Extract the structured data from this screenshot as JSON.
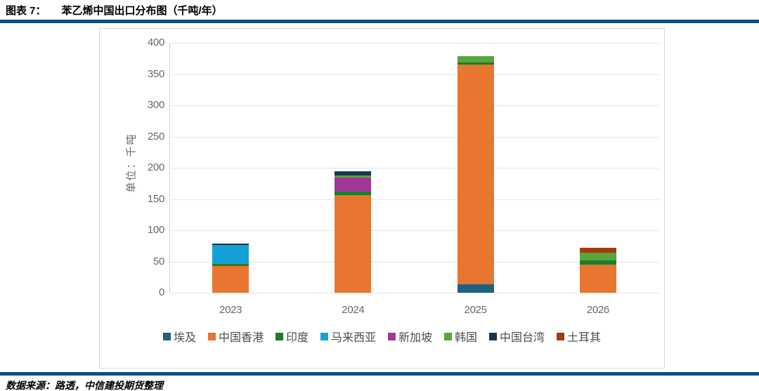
{
  "figure": {
    "label": "图表 7：",
    "title": "苯乙烯中国出口分布图（千吨/年）"
  },
  "source_note": "数据来源：路透，中信建投期货整理",
  "accent_colors": {
    "rule_blue": "#0e4e7e",
    "grid_gray": "#e5e5e5",
    "axis_gray": "#d2d2d2",
    "tick_text_gray": "#696969",
    "legend_text_gray": "#4d4d4d"
  },
  "chart_data": {
    "type": "bar",
    "stacked": true,
    "title": "苯乙烯中国出口分布图（千吨/年）",
    "categories": [
      "2023",
      "2024",
      "2025",
      "2026"
    ],
    "series": [
      {
        "name": "埃及",
        "color": "#1f6180",
        "values": [
          0,
          0,
          13,
          0
        ]
      },
      {
        "name": "中国香港",
        "color": "#e97630",
        "values": [
          43,
          156,
          352,
          45
        ]
      },
      {
        "name": "印度",
        "color": "#1e7b30",
        "values": [
          3,
          6,
          4,
          7
        ]
      },
      {
        "name": "马来西亚",
        "color": "#15a1d8",
        "values": [
          30,
          0,
          0,
          0
        ]
      },
      {
        "name": "新加坡",
        "color": "#a23699",
        "values": [
          0,
          22,
          0,
          0
        ]
      },
      {
        "name": "韩国",
        "color": "#56a63a",
        "values": [
          0,
          4,
          10,
          12
        ]
      },
      {
        "name": "中国台湾",
        "color": "#16384e",
        "values": [
          3,
          7,
          0,
          0
        ]
      },
      {
        "name": "土耳其",
        "color": "#a03c12",
        "values": [
          0,
          0,
          0,
          8
        ]
      }
    ],
    "totals": [
      79,
      195,
      379,
      72
    ],
    "xlabel": "",
    "ylabel": "单位：千吨",
    "ylim": [
      0,
      400
    ],
    "ytick_step": 50,
    "yticks": [
      0,
      50,
      100,
      150,
      200,
      250,
      300,
      350,
      400
    ],
    "grid": true,
    "legend_position": "bottom"
  }
}
